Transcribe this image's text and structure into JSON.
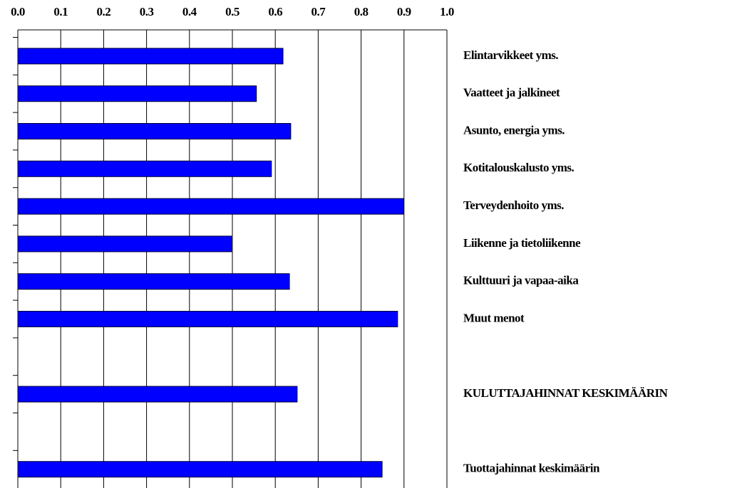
{
  "chart_data": {
    "type": "bar",
    "orientation": "horizontal",
    "categories": [
      "Elintarvikkeet yms.",
      "Vaatteet ja jalkineet",
      "Asunto, energia yms.",
      "Kotitalouskalusto yms.",
      "Terveydenhoito yms.",
      "Liikenne ja tietoliikenne",
      "Kulttuuri ja vapaa-aika",
      "Muut menot",
      null,
      "KULUTTAJAHINNAT KESKIMÄÄRIN",
      null,
      "Tuottajahinnat keskimäärin"
    ],
    "values": [
      0.618,
      0.556,
      0.636,
      0.591,
      0.899,
      0.498,
      0.633,
      0.885,
      null,
      0.651,
      null,
      0.849
    ],
    "color": "#0000ff",
    "xlim": [
      0,
      1
    ],
    "xticks": [
      {
        "value": 0,
        "label": "0.0"
      },
      0.1,
      0.2,
      0.3,
      0.4,
      0.5,
      0.6,
      0.7,
      0.8,
      0.9,
      {
        "value": 1,
        "label": "1.0"
      }
    ],
    "grid": true
  }
}
